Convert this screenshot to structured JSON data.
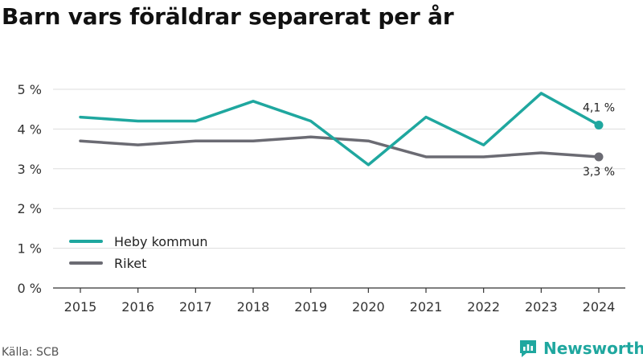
{
  "chart_data": {
    "type": "line",
    "title": "Barn vars föräldrar separerat per år",
    "x": [
      "2015",
      "2016",
      "2017",
      "2018",
      "2019",
      "2020",
      "2021",
      "2022",
      "2023",
      "2024"
    ],
    "ylim": [
      0,
      5
    ],
    "yticks": [
      0,
      1,
      2,
      3,
      4,
      5
    ],
    "ytick_labels": [
      "0 %",
      "1 %",
      "2 %",
      "3 %",
      "4 %",
      "5 %"
    ],
    "grid": true,
    "legend_position": "bottom-left",
    "series": [
      {
        "name": "Heby kommun",
        "color": "#1fa79f",
        "values": [
          4.3,
          4.2,
          4.2,
          4.7,
          4.2,
          3.1,
          4.3,
          3.6,
          4.9,
          4.1
        ],
        "end_label": "4,1 %"
      },
      {
        "name": "Riket",
        "color": "#6b6b73",
        "values": [
          3.7,
          3.6,
          3.7,
          3.7,
          3.8,
          3.7,
          3.3,
          3.3,
          3.4,
          3.3
        ],
        "end_label": "3,3 %"
      }
    ]
  },
  "source": "Källa: SCB",
  "brand": {
    "name": "Newsworthy",
    "icon": "newsworthy-logo-icon",
    "color": "#1fa79f"
  }
}
